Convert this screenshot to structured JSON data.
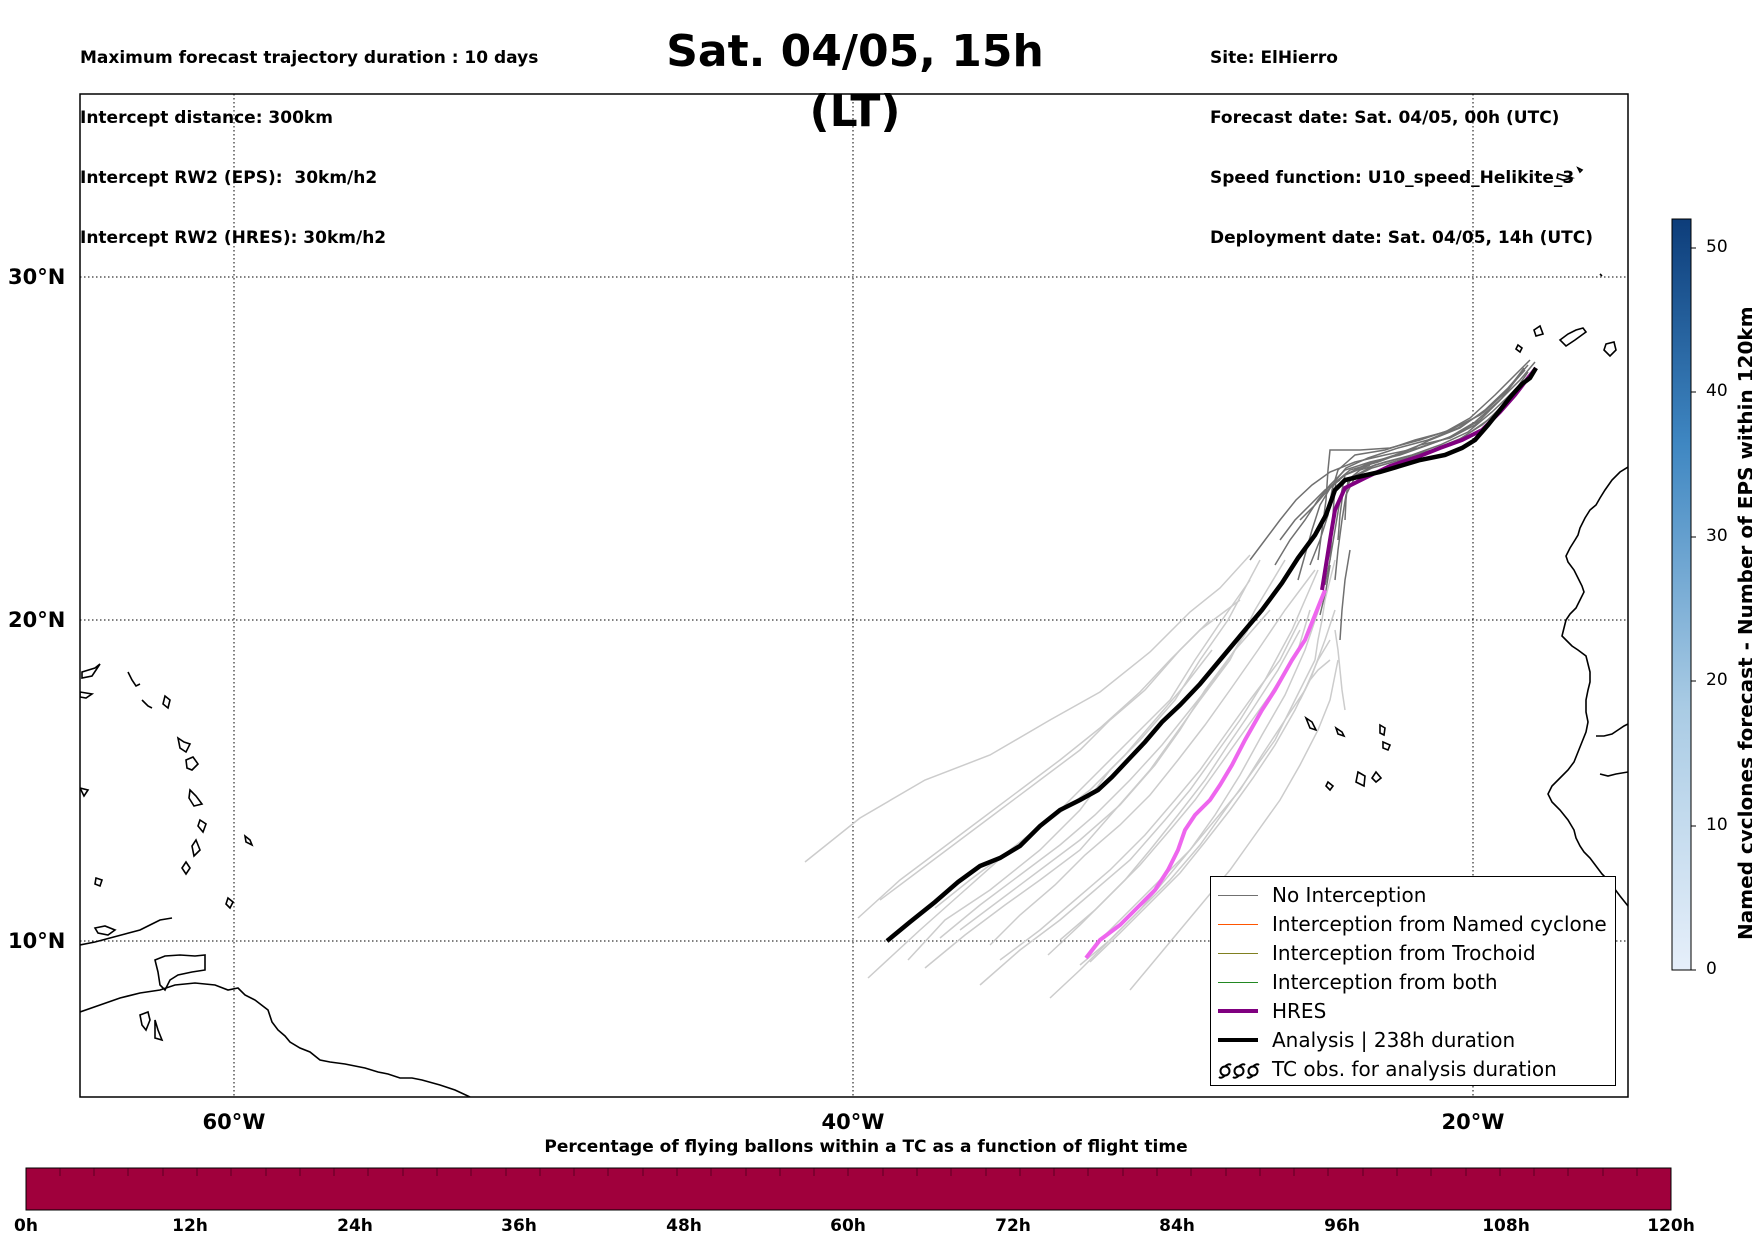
{
  "header_left": [
    "Maximum forecast trajectory duration : 10 days",
    "Intercept distance: 300km",
    "Intercept RW2 (EPS):  30km/h2",
    "Intercept RW2 (HRES): 30km/h2"
  ],
  "header_right": [
    "Site: ElHierro",
    "Forecast date: Sat. 04/05, 00h (UTC)",
    "Speed function: U10_speed_Helikite_3",
    "Deployment date: Sat. 04/05, 14h (UTC)"
  ],
  "title": "Sat. 04/05, 15h (LT)",
  "map": {
    "lat_labels": [
      "30°N",
      "20°N",
      "10°N"
    ],
    "lon_labels": [
      "60°W",
      "40°W",
      "20°W"
    ],
    "colors": {
      "eps": "#cccccc",
      "no_interception": "#707070",
      "hres": "#800080",
      "hres_light": "#ee66ee",
      "analysis": "#000000"
    }
  },
  "legend": {
    "items": [
      {
        "label": "No Interception",
        "color": "#707070",
        "icon": "line"
      },
      {
        "label": "Interception from Named cyclone",
        "color": "#ff5500",
        "icon": "line"
      },
      {
        "label": "Interception from Trochoid",
        "color": "#808020",
        "icon": "line"
      },
      {
        "label": "Interception from both",
        "color": "#228822",
        "icon": "line"
      },
      {
        "label": "HRES",
        "color": "#800080",
        "icon": "thick-line"
      },
      {
        "label": "Analysis | 238h duration",
        "color": "#000000",
        "icon": "thick-line"
      },
      {
        "label": "TC obs. for analysis duration",
        "color": "#000000",
        "icon": "cyclone-symbols"
      }
    ]
  },
  "colorbar": {
    "label": "Named cyclones forecast - Number of EPS within 120km",
    "ticks": [
      "0",
      "10",
      "20",
      "30",
      "40",
      "50"
    ],
    "max": 52,
    "color_low": "#e6effa",
    "color_high": "#0d3d7a"
  },
  "flight_bar": {
    "caption": "Percentage of flying ballons within a TC as a function of flight time",
    "ticks": [
      "0h",
      "12h",
      "24h",
      "36h",
      "48h",
      "60h",
      "72h",
      "84h",
      "96h",
      "108h",
      "120h"
    ],
    "fill_color": "#a0003c"
  }
}
